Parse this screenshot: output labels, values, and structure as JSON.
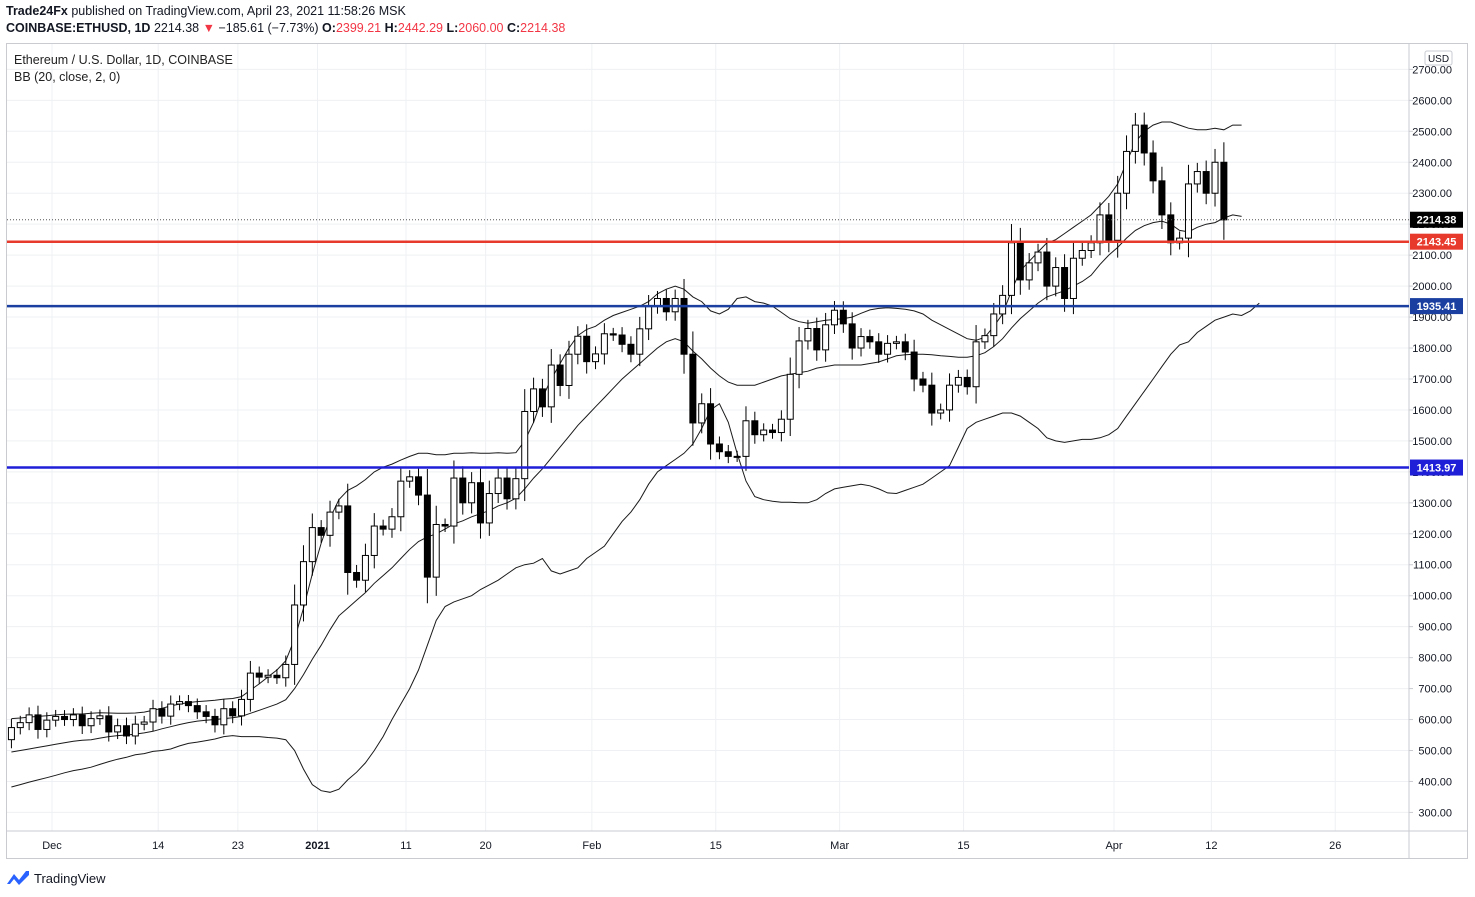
{
  "header": {
    "publisher": "Trade24Fx",
    "published_text": "published on TradingView.com, April 23, 2021 11:58:26 MSK",
    "symbol": "COINBASE:ETHUSD, 1D",
    "last": "2214.38",
    "change": "−185.61 (−7.73%)",
    "o_label": "O:",
    "o_value": "2399.21",
    "h_label": "H:",
    "h_value": "2442.29",
    "l_label": "L:",
    "l_value": "2060.00",
    "c_label": "C:",
    "c_value": "2214.38"
  },
  "legend": {
    "title": "Ethereum / U.S. Dollar, 1D, COINBASE",
    "indicator": "BB (20, close, 2, 0)"
  },
  "currency": "USD",
  "footer": {
    "brand": "TradingView"
  },
  "colors": {
    "up": "#ffffff",
    "down": "#000000",
    "wick": "#000000",
    "red_line": "#e8392d",
    "blue_line": "#1a3fa0",
    "blue_line2": "#1f1fd8",
    "grid": "#eef0f3",
    "last_price_bg": "#000000"
  },
  "chart_data": {
    "type": "candlestick",
    "title": "Ethereum / U.S. Dollar, 1D, COINBASE",
    "ylim": [
      250,
      2750
    ],
    "y_ticks": [
      "300.00",
      "400.00",
      "500.00",
      "600.00",
      "700.00",
      "800.00",
      "900.00",
      "1000.00",
      "1100.00",
      "1200.00",
      "1300.00",
      "1400.00",
      "1500.00",
      "1600.00",
      "1700.00",
      "1800.00",
      "1900.00",
      "2000.00",
      "2100.00",
      "2200.00",
      "2300.00",
      "2400.00",
      "2500.00",
      "2600.00",
      "2700.00"
    ],
    "x_ticks": [
      {
        "label": "Dec",
        "day": 2
      },
      {
        "label": "14",
        "day": 14
      },
      {
        "label": "23",
        "day": 23
      },
      {
        "label": "2021",
        "day": 32
      },
      {
        "label": "11",
        "day": 42
      },
      {
        "label": "20",
        "day": 51
      },
      {
        "label": "Feb",
        "day": 63
      },
      {
        "label": "15",
        "day": 77
      },
      {
        "label": "Mar",
        "day": 91
      },
      {
        "label": "15",
        "day": 105
      },
      {
        "label": "Apr",
        "day": 122
      },
      {
        "label": "12",
        "day": 133
      },
      {
        "label": "26",
        "day": 147
      }
    ],
    "x_start": "2020-11-30",
    "levels": [
      {
        "value": 2214.38,
        "label": "2214.38",
        "style": "last"
      },
      {
        "value": 2143.45,
        "label": "2143.45",
        "style": "red"
      },
      {
        "value": 1935.41,
        "label": "1935.41",
        "style": "blue"
      },
      {
        "value": 1413.97,
        "label": "1413.97",
        "style": "blue2"
      }
    ],
    "closes": [
      574,
      590,
      615,
      568,
      598,
      610,
      600,
      615,
      580,
      603,
      612,
      560,
      580,
      547,
      585,
      592,
      635,
      611,
      650,
      658,
      645,
      625,
      610,
      583,
      635,
      612,
      665,
      750,
      737,
      743,
      735,
      778,
      970,
      1110,
      1220,
      1195,
      1270,
      1290,
      1075,
      1050,
      1130,
      1225,
      1215,
      1255,
      1370,
      1384,
      1325,
      1060,
      1230,
      1225,
      1380,
      1300,
      1365,
      1235,
      1330,
      1380,
      1313,
      1378,
      1595,
      1668,
      1610,
      1745,
      1679,
      1780,
      1838,
      1756,
      1781,
      1846,
      1842,
      1812,
      1780,
      1862,
      1935,
      1960,
      1917,
      1960,
      1780,
      1558,
      1620,
      1490,
      1465,
      1450,
      1450,
      1565,
      1520,
      1535,
      1527,
      1570,
      1715,
      1823,
      1863,
      1794,
      1875,
      1922,
      1878,
      1800,
      1837,
      1820,
      1780,
      1815,
      1820,
      1787,
      1700,
      1680,
      1590,
      1600,
      1680,
      1705,
      1675,
      1820,
      1840,
      1910,
      1970,
      2140,
      2020,
      2075,
      2110,
      2000,
      2060,
      1960,
      2090,
      2115,
      2140,
      2230,
      2148,
      2300,
      2435,
      2520,
      2430,
      2340,
      2230,
      2140,
      2155,
      2330,
      2370,
      2300,
      2400,
      2214
    ],
    "series": [
      {
        "name": "BB upper",
        "values": [
          603,
          605,
          608,
          610,
          612,
          615,
          617,
          618,
          618,
          620,
          622,
          621,
          620,
          620,
          621,
          624,
          630,
          636,
          644,
          650,
          655,
          658,
          660,
          662,
          666,
          668,
          674,
          695,
          715,
          738,
          760,
          790,
          860,
          960,
          1070,
          1170,
          1250,
          1310,
          1340,
          1355,
          1375,
          1400,
          1415,
          1425,
          1438,
          1450,
          1460,
          1460,
          1455,
          1455,
          1460,
          1460,
          1462,
          1460,
          1460,
          1462,
          1460,
          1462,
          1500,
          1560,
          1640,
          1700,
          1750,
          1800,
          1840,
          1860,
          1870,
          1890,
          1905,
          1915,
          1925,
          1935,
          1950,
          1975,
          1990,
          2000,
          1990,
          1965,
          1950,
          1920,
          1910,
          1925,
          1960,
          1965,
          1950,
          1945,
          1935,
          1915,
          1895,
          1885,
          1880,
          1885,
          1890,
          1892,
          1895,
          1900,
          1912,
          1923,
          1928,
          1930,
          1928,
          1925,
          1920,
          1910,
          1890,
          1875,
          1860,
          1845,
          1830,
          1825,
          1835,
          1870,
          1910,
          1985,
          2050,
          2080,
          2110,
          2140,
          2150,
          2170,
          2190,
          2210,
          2230,
          2260,
          2290,
          2330,
          2400,
          2465,
          2500,
          2520,
          2530,
          2530,
          2520,
          2510,
          2505,
          2505,
          2510,
          2505,
          2520,
          2520
        ]
      },
      {
        "name": "BB basis",
        "values": [
          495,
          500,
          505,
          510,
          515,
          520,
          525,
          530,
          533,
          535,
          540,
          545,
          548,
          550,
          553,
          557,
          562,
          570,
          577,
          584,
          590,
          595,
          598,
          600,
          603,
          606,
          610,
          620,
          630,
          640,
          650,
          664,
          700,
          745,
          795,
          840,
          890,
          935,
          960,
          985,
          1010,
          1040,
          1065,
          1090,
          1120,
          1150,
          1175,
          1190,
          1200,
          1215,
          1232,
          1242,
          1255,
          1265,
          1275,
          1290,
          1300,
          1315,
          1345,
          1380,
          1410,
          1445,
          1480,
          1515,
          1550,
          1580,
          1610,
          1640,
          1670,
          1700,
          1725,
          1750,
          1775,
          1800,
          1820,
          1830,
          1820,
          1790,
          1765,
          1735,
          1710,
          1690,
          1680,
          1680,
          1680,
          1690,
          1700,
          1710,
          1715,
          1720,
          1725,
          1735,
          1740,
          1745,
          1745,
          1745,
          1745,
          1750,
          1755,
          1765,
          1775,
          1778,
          1780,
          1780,
          1778,
          1775,
          1773,
          1770,
          1770,
          1775,
          1785,
          1805,
          1830,
          1865,
          1895,
          1920,
          1945,
          1965,
          1975,
          1985,
          2000,
          2015,
          2035,
          2070,
          2100,
          2125,
          2155,
          2180,
          2195,
          2205,
          2210,
          2200,
          2180,
          2175,
          2190,
          2200,
          2205,
          2220,
          2230,
          2225
        ]
      },
      {
        "name": "BB lower",
        "values": [
          382,
          390,
          398,
          405,
          412,
          420,
          428,
          435,
          440,
          446,
          455,
          464,
          472,
          478,
          486,
          490,
          497,
          500,
          505,
          515,
          523,
          527,
          532,
          537,
          545,
          548,
          545,
          545,
          545,
          542,
          540,
          535,
          500,
          440,
          390,
          370,
          365,
          375,
          405,
          430,
          460,
          500,
          545,
          600,
          650,
          700,
          760,
          840,
          920,
          965,
          980,
          990,
          1000,
          1020,
          1035,
          1050,
          1070,
          1090,
          1100,
          1105,
          1120,
          1080,
          1070,
          1080,
          1090,
          1120,
          1140,
          1160,
          1200,
          1240,
          1270,
          1310,
          1360,
          1400,
          1420,
          1440,
          1460,
          1490,
          1540,
          1600,
          1620,
          1560,
          1460,
          1370,
          1320,
          1310,
          1305,
          1302,
          1302,
          1300,
          1300,
          1310,
          1330,
          1345,
          1350,
          1355,
          1360,
          1355,
          1345,
          1332,
          1330,
          1340,
          1350,
          1360,
          1380,
          1400,
          1420,
          1480,
          1540,
          1560,
          1570,
          1580,
          1590,
          1590,
          1580,
          1560,
          1540,
          1510,
          1500,
          1495,
          1500,
          1505,
          1505,
          1510,
          1520,
          1540,
          1580,
          1620,
          1660,
          1700,
          1740,
          1780,
          1810,
          1820,
          1850,
          1870,
          1890,
          1900,
          1910,
          1905,
          1920,
          1945
        ]
      }
    ]
  }
}
